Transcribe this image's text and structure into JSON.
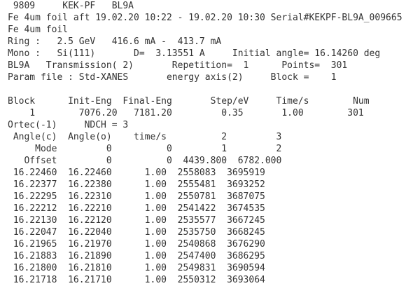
{
  "header": [
    " 9809     KEK-PF   BL9A",
    "Fe 4um foil aft 19.02.20 10:22 - 19.02.20 10:30 Serial#KEKPF-BL9A_009665",
    "Fe 4um foil",
    "Ring :   2.5 GeV   416.6 mA -  413.7 mA",
    "Mono :   Si(111)       D=  3.13551 A     Initial angle= 16.14260 deg",
    "BL9A   Transmission( 2)       Repetition=  1      Points=  301",
    "Param file : Std-XANES       energy axis(2)     Block =    1"
  ],
  "body": [
    "Block      Init-Eng  Final-Eng       Step/eV     Time/s        Num",
    "    1        7076.20   7181.20         0.35       1.00        301",
    "Ortec(-1)     NDCH = 3",
    " Angle(c)  Angle(o)    time/s          2         3",
    "     Mode         0          0         1         2",
    "   Offset         0          0  4439.800  6782.000",
    " 16.22460  16.22460      1.00  2558083  3695919",
    " 16.22377  16.22380      1.00  2555481  3693252",
    " 16.22295  16.22310      1.00  2550781  3687075",
    " 16.22212  16.22210      1.00  2541422  3674535",
    " 16.22130  16.22120      1.00  2535577  3667245",
    " 16.22047  16.22040      1.00  2535750  3668245",
    " 16.21965  16.21970      1.00  2540868  3676290",
    " 16.21883  16.21890      1.00  2547400  3686295",
    " 16.21800  16.21810      1.00  2549831  3690594",
    " 16.21718  16.21710      1.00  2550312  3693064"
  ]
}
